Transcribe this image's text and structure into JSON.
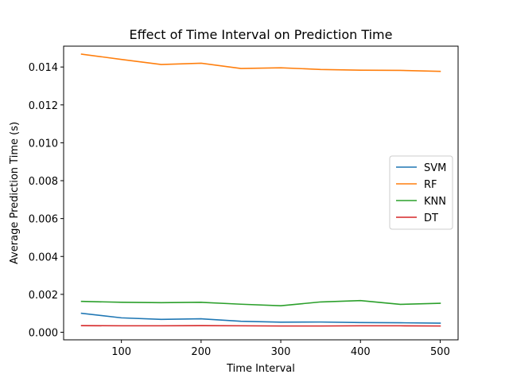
{
  "chart_data": {
    "type": "line",
    "title": "Effect of Time Interval on Prediction Time",
    "xlabel": "Time Interval",
    "ylabel": "Average Prediction Time (s)",
    "x": [
      50,
      100,
      150,
      200,
      250,
      300,
      350,
      400,
      450,
      500
    ],
    "xlim": [
      27.5,
      522.5
    ],
    "ylim": [
      -0.0004,
      0.0151
    ],
    "xticks": [
      100,
      200,
      300,
      400,
      500
    ],
    "yticks": [
      0.0,
      0.002,
      0.004,
      0.006,
      0.008,
      0.01,
      0.012,
      0.014
    ],
    "ytick_labels": [
      "0.000",
      "0.002",
      "0.004",
      "0.006",
      "0.008",
      "0.010",
      "0.012",
      "0.014"
    ],
    "grid": false,
    "legend_position": "center-right",
    "series": [
      {
        "name": "SVM",
        "color": "#1f77b4",
        "values": [
          0.001,
          0.00076,
          0.00068,
          0.00071,
          0.00058,
          0.00053,
          0.00054,
          0.00051,
          0.0005,
          0.00048
        ]
      },
      {
        "name": "RF",
        "color": "#ff7f0e",
        "values": [
          0.01468,
          0.0144,
          0.01413,
          0.0142,
          0.01392,
          0.01396,
          0.01387,
          0.01383,
          0.01382,
          0.01377
        ]
      },
      {
        "name": "KNN",
        "color": "#2ca02c",
        "values": [
          0.00163,
          0.00158,
          0.00156,
          0.00158,
          0.00148,
          0.0014,
          0.0016,
          0.00167,
          0.00147,
          0.00153
        ]
      },
      {
        "name": "DT",
        "color": "#d62728",
        "values": [
          0.00035,
          0.00034,
          0.00034,
          0.00035,
          0.00034,
          0.00033,
          0.00033,
          0.00034,
          0.00034,
          0.00033
        ]
      }
    ]
  }
}
